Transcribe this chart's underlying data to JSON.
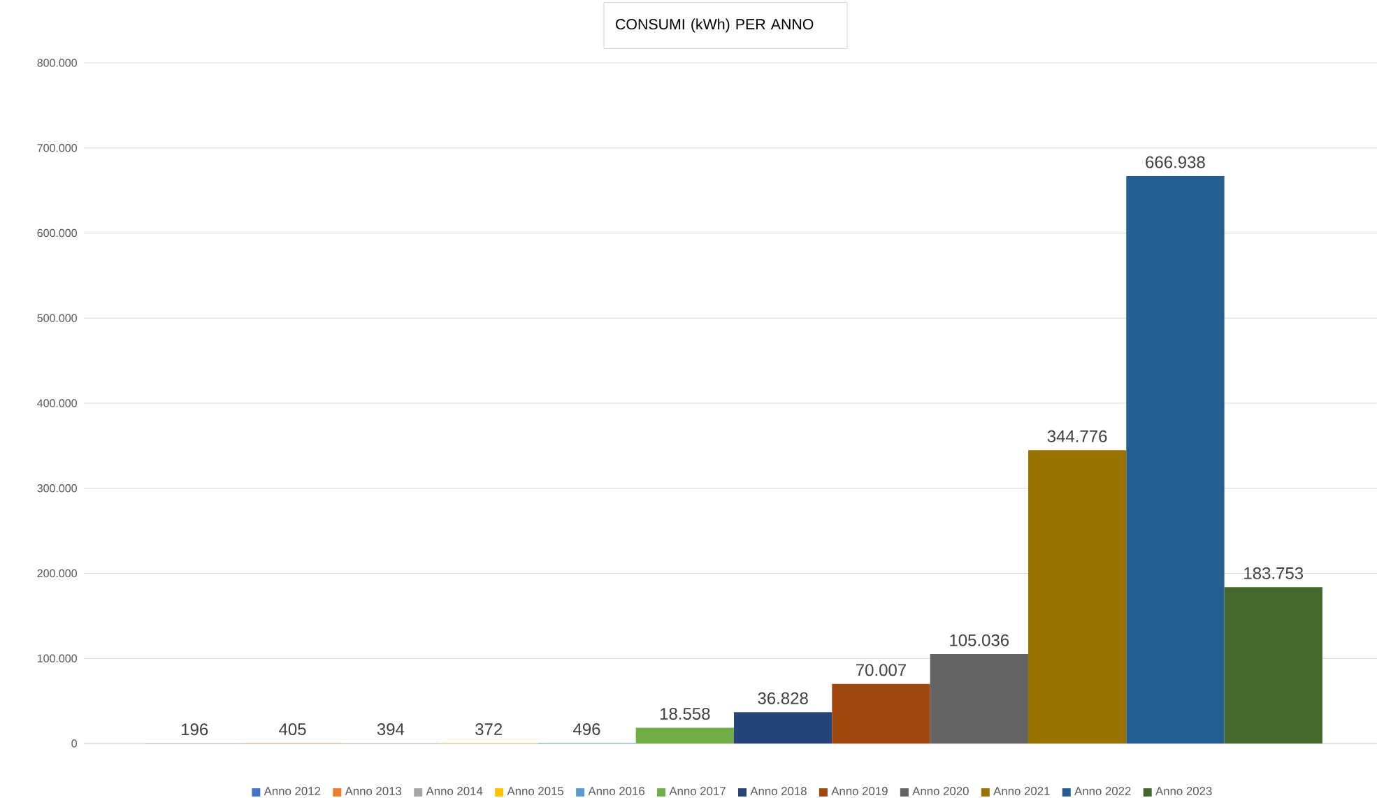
{
  "chart_data": {
    "type": "bar",
    "title": "CONSUMI (kWh) PER ANNO",
    "categories": [
      null
    ],
    "series": [
      {
        "name": "Anno 2012",
        "color": "#4472c4",
        "values": [
          196
        ],
        "value_labels": [
          "196"
        ]
      },
      {
        "name": "Anno 2013",
        "color": "#ed7d31",
        "values": [
          405
        ],
        "value_labels": [
          "405"
        ]
      },
      {
        "name": "Anno 2014",
        "color": "#a5a5a5",
        "values": [
          394
        ],
        "value_labels": [
          "394"
        ]
      },
      {
        "name": "Anno 2015",
        "color": "#ffc000",
        "values": [
          372
        ],
        "value_labels": [
          "372"
        ]
      },
      {
        "name": "Anno 2016",
        "color": "#5b9bd5",
        "values": [
          496
        ],
        "value_labels": [
          "496"
        ]
      },
      {
        "name": "Anno 2017",
        "color": "#70ad47",
        "values": [
          18558
        ],
        "value_labels": [
          "18.558"
        ]
      },
      {
        "name": "Anno 2018",
        "color": "#264478",
        "values": [
          36828
        ],
        "value_labels": [
          "36.828"
        ]
      },
      {
        "name": "Anno 2019",
        "color": "#9e480e",
        "values": [
          70007
        ],
        "value_labels": [
          "70.007"
        ]
      },
      {
        "name": "Anno 2020",
        "color": "#636363",
        "values": [
          105036
        ],
        "value_labels": [
          "105.036"
        ]
      },
      {
        "name": "Anno 2021",
        "color": "#997300",
        "values": [
          344776
        ],
        "value_labels": [
          "344.776"
        ]
      },
      {
        "name": "Anno 2022",
        "color": "#255e91",
        "values": [
          666938
        ],
        "value_labels": [
          "666.938"
        ]
      },
      {
        "name": "Anno 2023",
        "color": "#43682b",
        "values": [
          183753
        ],
        "value_labels": [
          "183.753"
        ]
      }
    ],
    "ylim": [
      0,
      800000
    ],
    "yticks": [
      0,
      {
        "value": 100000,
        "label": "100.000"
      },
      {
        "value": 200000,
        "label": "200.000"
      },
      {
        "value": 300000,
        "label": "300.000"
      },
      {
        "value": 400000,
        "label": "400.000"
      },
      {
        "value": 500000,
        "label": "500.000"
      },
      {
        "value": 600000,
        "label": "600.000"
      },
      {
        "value": 700000,
        "label": "700.000"
      },
      {
        "value": 800000,
        "label": "800.000"
      }
    ],
    "grid": "y",
    "legend": "bottom"
  }
}
